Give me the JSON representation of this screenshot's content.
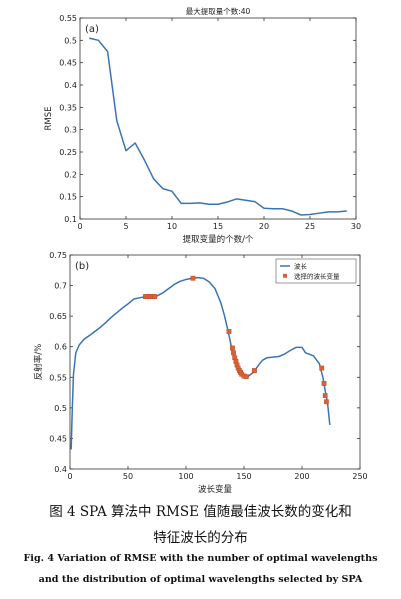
{
  "chart_data": [
    {
      "type": "line",
      "panel_label": "(a)",
      "title": "最大提取量个数:40",
      "xlabel": "提取变量的个数/个",
      "ylabel": "RMSE",
      "xlim": [
        0,
        30
      ],
      "ylim": [
        0.1,
        0.55
      ],
      "xticks": [
        0,
        5,
        10,
        15,
        20,
        25,
        30
      ],
      "yticks": [
        0.1,
        0.15,
        0.2,
        0.25,
        0.3,
        0.35,
        0.4,
        0.45,
        0.5,
        0.55
      ],
      "grid": false,
      "series": [
        {
          "color": "#3a74b3",
          "x": [
            1,
            2,
            3,
            4,
            5,
            6,
            7,
            8,
            9,
            10,
            11,
            12,
            13,
            14,
            15,
            16,
            17,
            18,
            19,
            20,
            21,
            22,
            23,
            24,
            25,
            26,
            27,
            28,
            29
          ],
          "y": [
            0.505,
            0.5,
            0.475,
            0.32,
            0.253,
            0.27,
            0.232,
            0.19,
            0.168,
            0.162,
            0.135,
            0.135,
            0.136,
            0.133,
            0.133,
            0.138,
            0.145,
            0.142,
            0.139,
            0.124,
            0.123,
            0.123,
            0.118,
            0.109,
            0.11,
            0.113,
            0.116,
            0.116,
            0.118
          ]
        }
      ]
    },
    {
      "type": "line",
      "panel_label": "(b)",
      "xlabel": "波长变量",
      "ylabel": "反射率/%",
      "xlim": [
        0,
        250
      ],
      "ylim": [
        0.4,
        0.75
      ],
      "xticks": [
        0,
        50,
        100,
        150,
        200,
        250
      ],
      "yticks": [
        0.4,
        0.45,
        0.5,
        0.55,
        0.6,
        0.65,
        0.7,
        0.75
      ],
      "grid": false,
      "legend": {
        "position": "top-right",
        "entries": [
          "波长",
          "选择的波长变量"
        ]
      },
      "series": [
        {
          "name": "波长",
          "color": "#3a74b3",
          "x": [
            1,
            2,
            3,
            5,
            8,
            12,
            18,
            25,
            30,
            35,
            40,
            45,
            50,
            55,
            60,
            65,
            70,
            75,
            80,
            85,
            90,
            95,
            100,
            105,
            110,
            115,
            120,
            125,
            130,
            133,
            136,
            138,
            140,
            142,
            144,
            146,
            148,
            150,
            152,
            154,
            156,
            158,
            160,
            163,
            166,
            170,
            175,
            180,
            185,
            190,
            195,
            200,
            203,
            206,
            210,
            215,
            218,
            220,
            222,
            224
          ],
          "y": [
            0.432,
            0.5,
            0.555,
            0.59,
            0.603,
            0.612,
            0.62,
            0.63,
            0.638,
            0.647,
            0.655,
            0.663,
            0.67,
            0.678,
            0.68,
            0.682,
            0.682,
            0.683,
            0.688,
            0.695,
            0.702,
            0.707,
            0.71,
            0.712,
            0.713,
            0.712,
            0.706,
            0.695,
            0.672,
            0.652,
            0.628,
            0.61,
            0.592,
            0.578,
            0.566,
            0.558,
            0.553,
            0.551,
            0.551,
            0.552,
            0.555,
            0.558,
            0.563,
            0.571,
            0.578,
            0.582,
            0.583,
            0.584,
            0.588,
            0.594,
            0.599,
            0.599,
            0.59,
            0.588,
            0.585,
            0.572,
            0.55,
            0.528,
            0.508,
            0.472
          ]
        },
        {
          "name": "选择的波长变量",
          "color": "#d9623b",
          "marker": "square",
          "x": [
            65,
            67,
            69,
            71,
            73,
            106,
            137,
            140,
            141,
            142,
            143,
            144,
            145,
            146,
            147,
            148,
            150,
            152,
            159,
            217,
            219,
            220,
            221
          ],
          "y": [
            0.682,
            0.682,
            0.682,
            0.682,
            0.682,
            0.712,
            0.625,
            0.598,
            0.59,
            0.582,
            0.576,
            0.57,
            0.565,
            0.561,
            0.558,
            0.555,
            0.552,
            0.551,
            0.561,
            0.565,
            0.54,
            0.52,
            0.51
          ]
        }
      ]
    }
  ],
  "caption": {
    "zh_line1": "图 4    SPA 算法中 RMSE 值随最佳波长数的变化和",
    "zh_line2": "特征波长的分布",
    "en_line1": "Fig. 4    Variation of RMSE with the number of optimal wavelengths",
    "en_line2": "and the distribution of optimal wavelengths selected by SPA"
  }
}
